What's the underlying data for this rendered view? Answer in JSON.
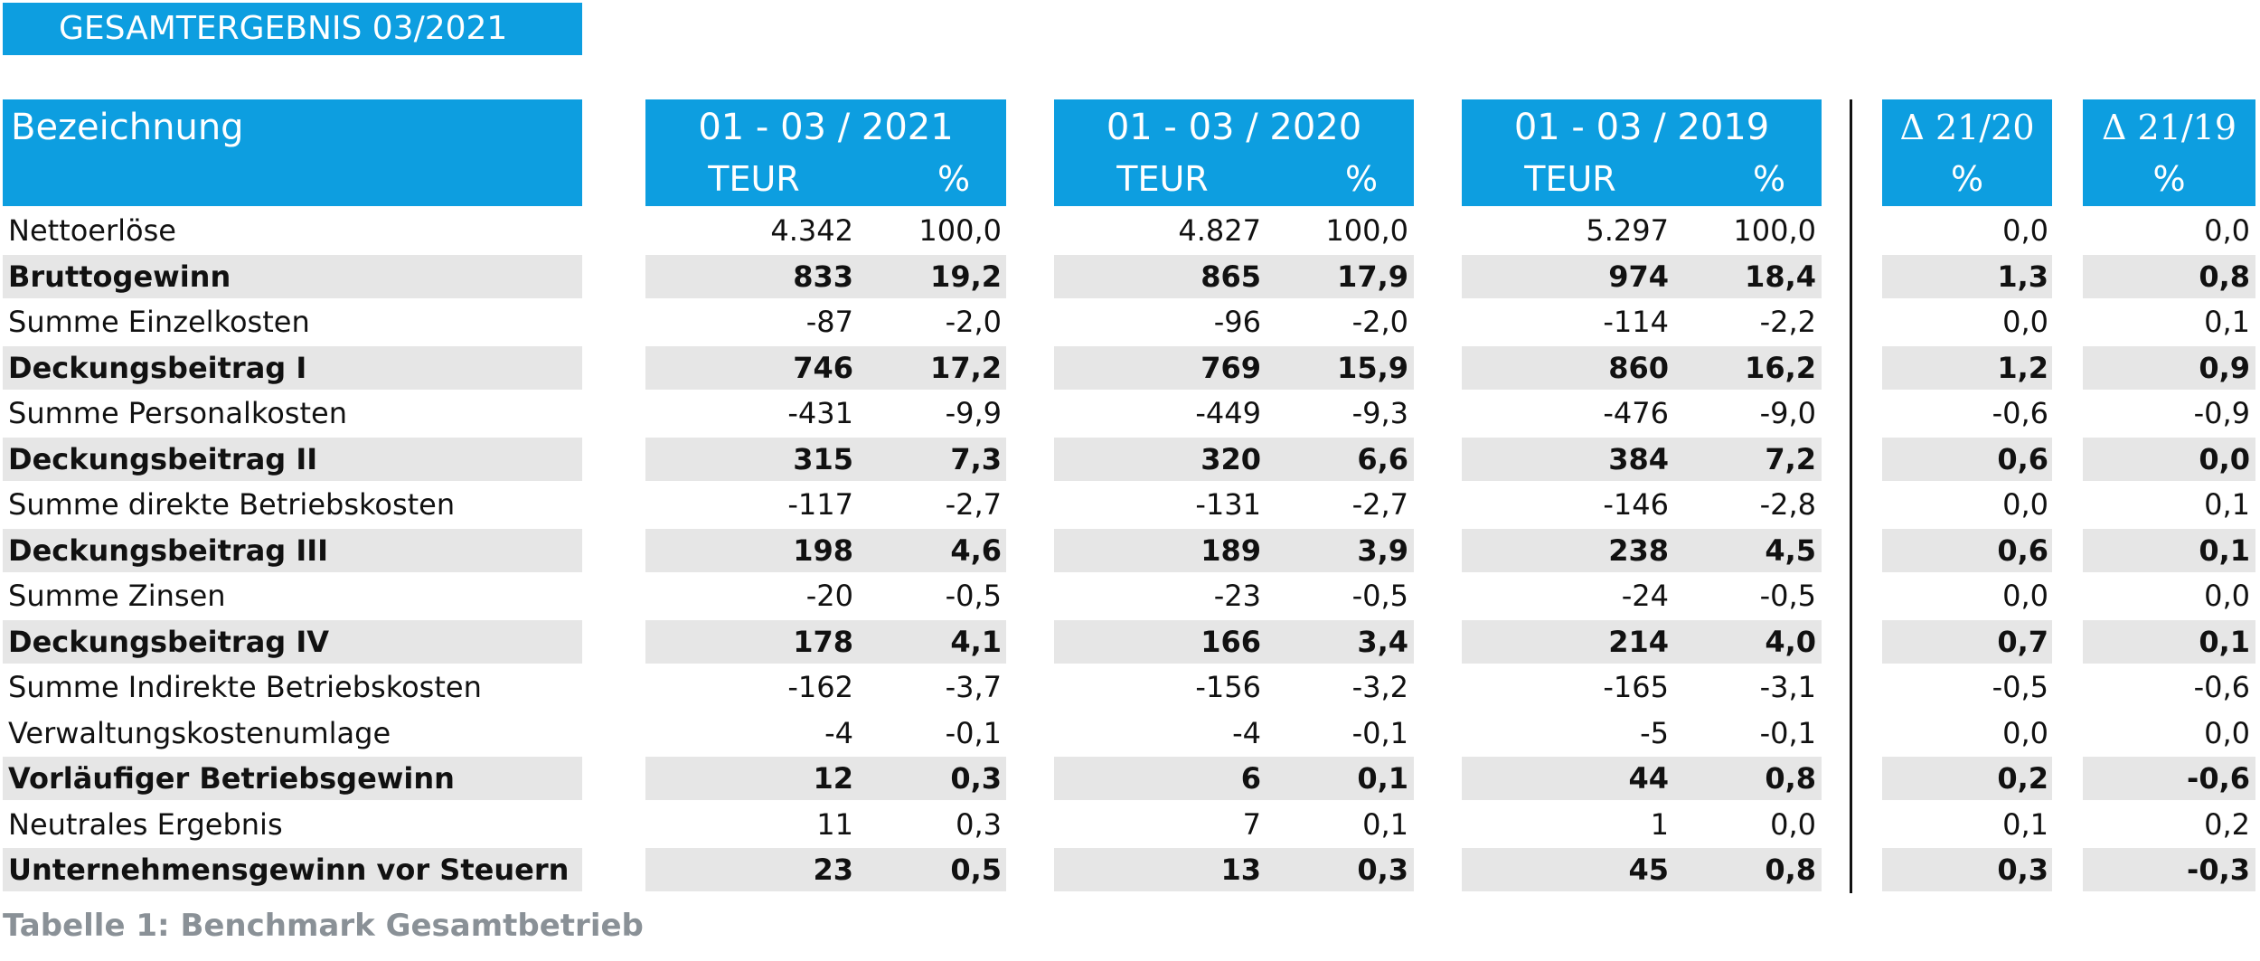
{
  "title": "GESAMTERGEBNIS 03/2021",
  "table": {
    "header": {
      "label": "Bezeichnung",
      "groups": [
        {
          "title": "01 - 03 / 2021",
          "units": [
            "TEUR",
            "%"
          ]
        },
        {
          "title": "01 - 03 / 2020",
          "units": [
            "TEUR",
            "%"
          ]
        },
        {
          "title": "01 - 03 / 2019",
          "units": [
            "TEUR",
            "%"
          ]
        }
      ],
      "deltas": [
        {
          "title": "Δ 21/20",
          "unit": "%"
        },
        {
          "title": "Δ 21/19",
          "unit": "%"
        }
      ]
    },
    "rows": [
      {
        "label": "Nettoerlöse",
        "cells": [
          "4.342",
          "100,0",
          "4.827",
          "100,0",
          "5.297",
          "100,0",
          "0,0",
          "0,0"
        ],
        "bold": false
      },
      {
        "label": "Bruttogewinn",
        "cells": [
          "833",
          "19,2",
          "865",
          "17,9",
          "974",
          "18,4",
          "1,3",
          "0,8"
        ],
        "bold": true
      },
      {
        "label": "Summe Einzelkosten",
        "cells": [
          "-87",
          "-2,0",
          "-96",
          "-2,0",
          "-114",
          "-2,2",
          "0,0",
          "0,1"
        ],
        "bold": false
      },
      {
        "label": "Deckungsbeitrag I",
        "cells": [
          "746",
          "17,2",
          "769",
          "15,9",
          "860",
          "16,2",
          "1,2",
          "0,9"
        ],
        "bold": true
      },
      {
        "label": "Summe Personalkosten",
        "cells": [
          "-431",
          "-9,9",
          "-449",
          "-9,3",
          "-476",
          "-9,0",
          "-0,6",
          "-0,9"
        ],
        "bold": false
      },
      {
        "label": "Deckungsbeitrag II",
        "cells": [
          "315",
          "7,3",
          "320",
          "6,6",
          "384",
          "7,2",
          "0,6",
          "0,0"
        ],
        "bold": true
      },
      {
        "label": "Summe direkte Betriebskosten",
        "cells": [
          "-117",
          "-2,7",
          "-131",
          "-2,7",
          "-146",
          "-2,8",
          "0,0",
          "0,1"
        ],
        "bold": false
      },
      {
        "label": "Deckungsbeitrag III",
        "cells": [
          "198",
          "4,6",
          "189",
          "3,9",
          "238",
          "4,5",
          "0,6",
          "0,1"
        ],
        "bold": true
      },
      {
        "label": "Summe Zinsen",
        "cells": [
          "-20",
          "-0,5",
          "-23",
          "-0,5",
          "-24",
          "-0,5",
          "0,0",
          "0,0"
        ],
        "bold": false
      },
      {
        "label": "Deckungsbeitrag IV",
        "cells": [
          "178",
          "4,1",
          "166",
          "3,4",
          "214",
          "4,0",
          "0,7",
          "0,1"
        ],
        "bold": true
      },
      {
        "label": "Summe Indirekte Betriebskosten",
        "cells": [
          "-162",
          "-3,7",
          "-156",
          "-3,2",
          "-165",
          "-3,1",
          "-0,5",
          "-0,6"
        ],
        "bold": false
      },
      {
        "label": "Verwaltungskostenumlage",
        "cells": [
          "-4",
          "-0,1",
          "-4",
          "-0,1",
          "-5",
          "-0,1",
          "0,0",
          "0,0"
        ],
        "bold": false
      },
      {
        "label": "Vorläufiger Betriebsgewinn",
        "cells": [
          "12",
          "0,3",
          "6",
          "0,1",
          "44",
          "0,8",
          "0,2",
          "-0,6"
        ],
        "bold": true
      },
      {
        "label": "Neutrales Ergebnis",
        "cells": [
          "11",
          "0,3",
          "7",
          "0,1",
          "1",
          "0,0",
          "0,1",
          "0,2"
        ],
        "bold": false
      },
      {
        "label": "Unternehmensgewinn vor Steuern",
        "cells": [
          "23",
          "0,5",
          "13",
          "0,3",
          "45",
          "0,8",
          "0,3",
          "-0,3"
        ],
        "bold": true
      }
    ]
  },
  "caption": "Tabelle 1: Benchmark Gesamtbetrieb"
}
